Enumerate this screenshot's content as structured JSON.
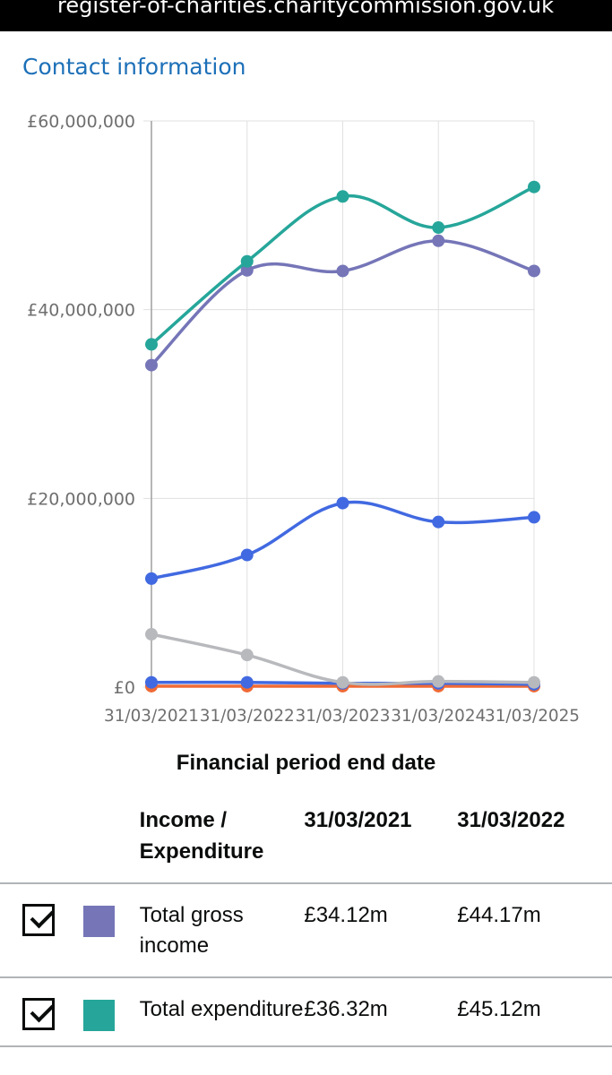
{
  "browser": {
    "url": "register-of-charities.charitycommission.gov.uk"
  },
  "page": {
    "contact_link": "Contact information"
  },
  "chart_data": {
    "type": "line",
    "xlabel": "Financial period end date",
    "categories": [
      "31/03/2021",
      "31/03/2022",
      "31/03/2023",
      "31/03/2024",
      "31/03/2025"
    ],
    "y_ticks": [
      "£0",
      "£20,000,000",
      "£40,000,000",
      "£60,000,000"
    ],
    "ylim": [
      0,
      60000000
    ],
    "grid": true,
    "series": [
      {
        "name": "Total gross income",
        "color": "#7575b8",
        "values": [
          34120000,
          44170000,
          44100000,
          47300000,
          44100000
        ]
      },
      {
        "name": "Total expenditure",
        "color": "#26a69a",
        "values": [
          36320000,
          45120000,
          52000000,
          48700000,
          53000000
        ]
      },
      {
        "color": "#4169e1",
        "values": [
          11500000,
          14000000,
          19500000,
          17500000,
          18000000
        ]
      },
      {
        "color": "#b8b9bd",
        "values": [
          5600000,
          3400000,
          500000,
          600000,
          500000
        ]
      },
      {
        "color": "#4169e1",
        "values": [
          500000,
          500000,
          400000,
          400000,
          300000
        ]
      },
      {
        "color": "#f06a35",
        "values": [
          100000,
          100000,
          100000,
          100000,
          100000
        ]
      }
    ]
  },
  "table": {
    "headers": [
      "Income / Expenditure",
      "31/03/2021",
      "31/03/2022"
    ],
    "rows": [
      {
        "checked": true,
        "color": "#7575b8",
        "label": "Total gross income",
        "v1": "£34.12m",
        "v2": "£44.17m"
      },
      {
        "checked": true,
        "color": "#26a69a",
        "label": "Total expenditure",
        "v1": "£36.32m",
        "v2": "£45.12m"
      }
    ]
  }
}
